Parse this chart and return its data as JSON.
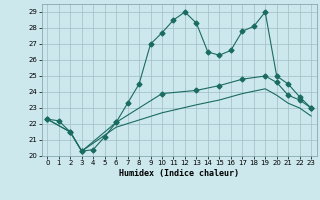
{
  "xlabel": "Humidex (Indice chaleur)",
  "bg_color": "#cce8ed",
  "grid_color": "#a0bec4",
  "line_color": "#1a6b60",
  "xlim": [
    -0.5,
    23.5
  ],
  "ylim": [
    20,
    29.5
  ],
  "yticks": [
    20,
    21,
    22,
    23,
    24,
    25,
    26,
    27,
    28,
    29
  ],
  "xticks": [
    0,
    1,
    2,
    3,
    4,
    5,
    6,
    7,
    8,
    9,
    10,
    11,
    12,
    13,
    14,
    15,
    16,
    17,
    18,
    19,
    20,
    21,
    22,
    23
  ],
  "line1_x": [
    0,
    1,
    2,
    3,
    4,
    5,
    6,
    7,
    8,
    9,
    10,
    11,
    12,
    13,
    14,
    15,
    16,
    17,
    18,
    19,
    20,
    21,
    22,
    23
  ],
  "line1_y": [
    22.3,
    22.2,
    21.5,
    20.3,
    20.4,
    21.2,
    22.1,
    23.3,
    24.5,
    27.0,
    27.7,
    28.5,
    29.0,
    28.3,
    26.5,
    26.3,
    26.6,
    27.8,
    28.1,
    29.0,
    25.0,
    24.5,
    23.7,
    23.0
  ],
  "line2_x": [
    0,
    2,
    3,
    6,
    10,
    13,
    15,
    17,
    19,
    20,
    21,
    22,
    23
  ],
  "line2_y": [
    22.3,
    21.5,
    20.3,
    22.1,
    23.9,
    24.1,
    24.4,
    24.8,
    25.0,
    24.6,
    23.8,
    23.5,
    23.0
  ],
  "line3_x": [
    0,
    2,
    3,
    6,
    10,
    13,
    15,
    17,
    19,
    20,
    21,
    22,
    23
  ],
  "line3_y": [
    22.3,
    21.5,
    20.3,
    21.8,
    22.7,
    23.2,
    23.5,
    23.9,
    24.2,
    23.8,
    23.3,
    23.0,
    22.5
  ]
}
